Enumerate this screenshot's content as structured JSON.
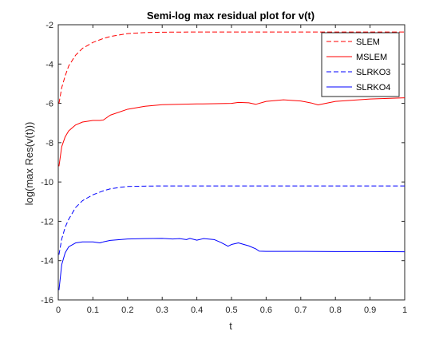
{
  "chart_data": {
    "type": "line",
    "title": "Semi-log max residual plot for v(t)",
    "xlabel": "t",
    "ylabel": "log(max Res(v(t)))",
    "xlim": [
      0,
      1
    ],
    "ylim": [
      -16,
      -2
    ],
    "xticks": [
      0,
      0.1,
      0.2,
      0.3,
      0.4,
      0.5,
      0.6,
      0.7,
      0.8,
      0.9,
      1
    ],
    "xtick_labels": [
      "0",
      "0.1",
      "0.2",
      "0.3",
      "0.4",
      "0.5",
      "0.6",
      "0.7",
      "0.8",
      "0.9",
      "1"
    ],
    "yticks": [
      -16,
      -14,
      -12,
      -10,
      -8,
      -6,
      -4,
      -2
    ],
    "ytick_labels": [
      "-16",
      "-14",
      "-12",
      "-10",
      "-8",
      "-6",
      "-4",
      "-2"
    ],
    "grid": false,
    "legend_position": "top-right",
    "series": [
      {
        "name": "SLEM",
        "color": "#ff0000",
        "style": "dashed",
        "x": [
          0.002,
          0.01,
          0.02,
          0.03,
          0.05,
          0.07,
          0.1,
          0.13,
          0.15,
          0.2,
          0.25,
          0.3,
          0.4,
          0.5,
          0.6,
          0.7,
          0.8,
          0.9,
          1.0
        ],
        "y": [
          -6.0,
          -5.2,
          -4.6,
          -4.1,
          -3.55,
          -3.2,
          -2.9,
          -2.7,
          -2.6,
          -2.45,
          -2.4,
          -2.38,
          -2.37,
          -2.37,
          -2.37,
          -2.37,
          -2.37,
          -2.37,
          -2.37
        ]
      },
      {
        "name": "MSLEM",
        "color": "#ff0000",
        "style": "solid",
        "x": [
          0.002,
          0.01,
          0.02,
          0.03,
          0.05,
          0.07,
          0.1,
          0.12,
          0.13,
          0.15,
          0.2,
          0.25,
          0.3,
          0.4,
          0.45,
          0.5,
          0.52,
          0.55,
          0.57,
          0.6,
          0.65,
          0.7,
          0.73,
          0.75,
          0.8,
          0.9,
          1.0
        ],
        "y": [
          -9.2,
          -8.2,
          -7.7,
          -7.4,
          -7.1,
          -6.95,
          -6.87,
          -6.87,
          -6.85,
          -6.6,
          -6.3,
          -6.15,
          -6.07,
          -6.03,
          -6.02,
          -6.0,
          -5.95,
          -5.97,
          -6.05,
          -5.9,
          -5.82,
          -5.88,
          -5.98,
          -6.08,
          -5.9,
          -5.78,
          -5.72
        ]
      },
      {
        "name": "SLRKO3",
        "color": "#0000ff",
        "style": "dashed",
        "x": [
          0.002,
          0.01,
          0.02,
          0.03,
          0.05,
          0.07,
          0.1,
          0.13,
          0.15,
          0.18,
          0.2,
          0.25,
          0.3,
          0.4,
          0.5,
          0.6,
          0.7,
          0.8,
          0.9,
          1.0
        ],
        "y": [
          -13.7,
          -12.9,
          -12.3,
          -11.9,
          -11.3,
          -10.95,
          -10.65,
          -10.45,
          -10.35,
          -10.27,
          -10.23,
          -10.21,
          -10.2,
          -10.2,
          -10.2,
          -10.2,
          -10.2,
          -10.2,
          -10.2,
          -10.2
        ]
      },
      {
        "name": "SLRKO4",
        "color": "#0000ff",
        "style": "solid",
        "x": [
          0.002,
          0.01,
          0.02,
          0.03,
          0.05,
          0.07,
          0.1,
          0.12,
          0.13,
          0.15,
          0.2,
          0.25,
          0.3,
          0.33,
          0.35,
          0.37,
          0.38,
          0.4,
          0.42,
          0.45,
          0.47,
          0.49,
          0.5,
          0.52,
          0.53,
          0.55,
          0.57,
          0.58,
          0.6,
          0.7,
          0.8,
          0.9,
          1.0
        ],
        "y": [
          -15.5,
          -14.2,
          -13.6,
          -13.3,
          -13.1,
          -13.05,
          -13.05,
          -13.1,
          -13.05,
          -12.97,
          -12.9,
          -12.88,
          -12.87,
          -12.9,
          -12.88,
          -12.93,
          -12.87,
          -12.96,
          -12.88,
          -12.93,
          -13.08,
          -13.27,
          -13.18,
          -13.1,
          -13.15,
          -13.25,
          -13.4,
          -13.52,
          -13.53,
          -13.53,
          -13.54,
          -13.54,
          -13.55
        ]
      }
    ]
  }
}
